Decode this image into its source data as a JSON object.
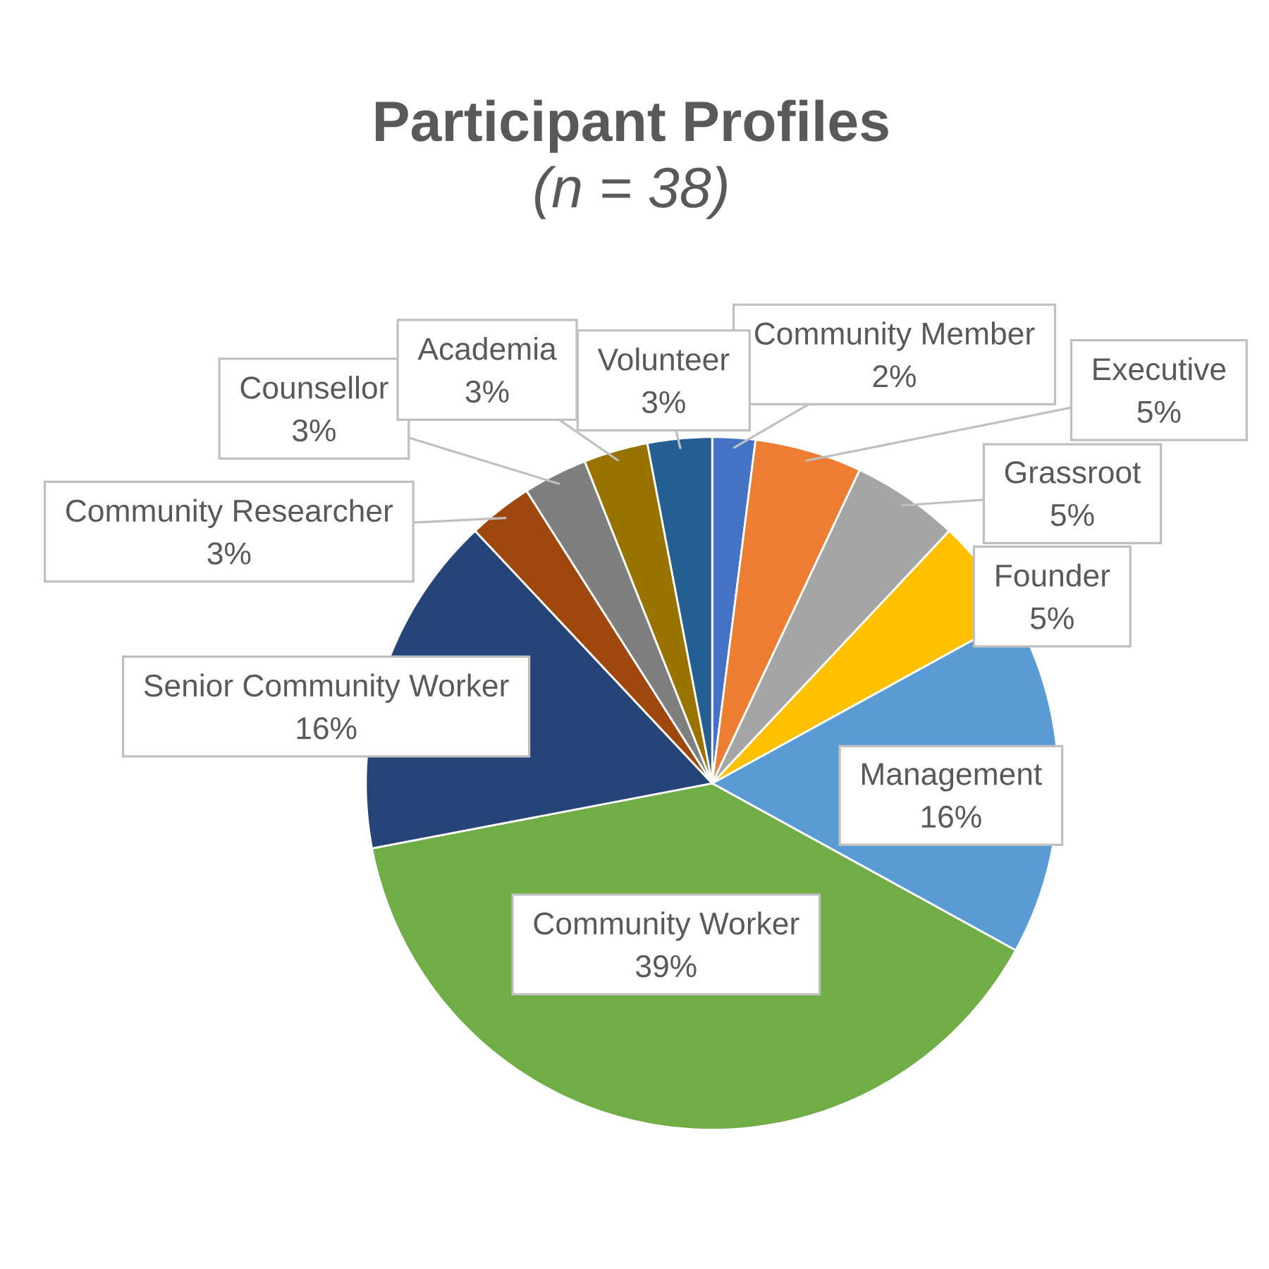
{
  "chart_data": {
    "type": "pie",
    "title": "Participant Profiles",
    "subtitle": "*(n = 38)*",
    "categories": [
      "Community Member",
      "Executive",
      "Grassroot",
      "Founder",
      "Management",
      "Community Worker",
      "Senior Community Worker",
      "Community Researcher",
      "Counsellor",
      "Academia",
      "Volunteer"
    ],
    "values": [
      2,
      5,
      5,
      5,
      16,
      39,
      16,
      3,
      3,
      3,
      3
    ],
    "value_labels": [
      "2%",
      "5%",
      "5%",
      "5%",
      "16%",
      "39%",
      "16%",
      "3%",
      "3%",
      "3%",
      "3%"
    ],
    "colors": [
      "#4472c4",
      "#ed7d31",
      "#a5a5a5",
      "#ffc000",
      "#5b9bd5",
      "#70ad47",
      "#264478",
      "#9e480e",
      "#7f7f7f",
      "#997300",
      "#255e91"
    ]
  }
}
